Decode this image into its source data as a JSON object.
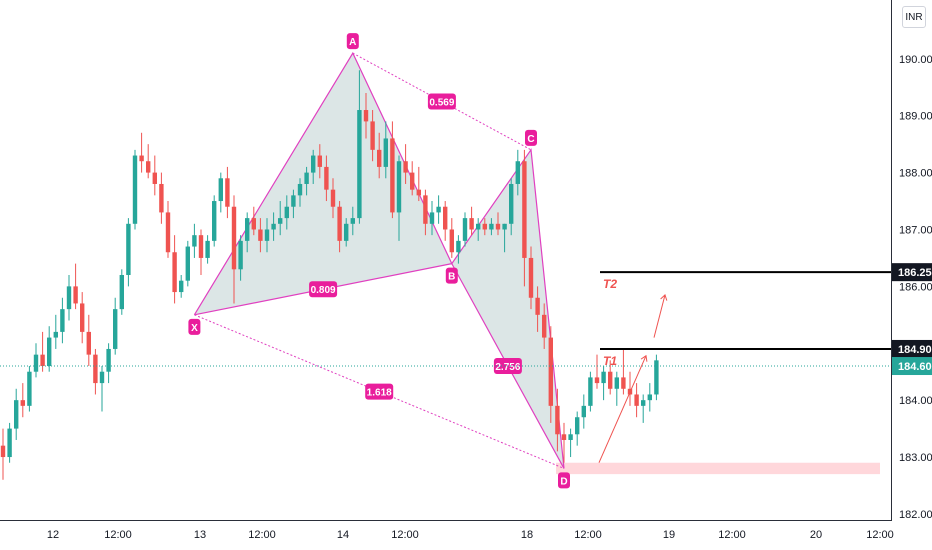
{
  "currency": "INR",
  "chart_data": {
    "type": "candlestick",
    "y_ticks": [
      "190.00",
      "189.00",
      "188.00",
      "187.00",
      "186.00",
      "185.00",
      "184.00",
      "183.00",
      "182.00"
    ],
    "x_ticks": [
      "12",
      "12:00",
      "13",
      "12:00",
      "14",
      "12:00",
      "18",
      "12:00",
      "19",
      "12:00",
      "20",
      "12:00"
    ],
    "ylim": [
      181.7,
      190.7
    ],
    "candles_ohlc": [
      [
        183.2,
        183.5,
        182.6,
        183.0
      ],
      [
        183.0,
        183.6,
        182.9,
        183.5
      ],
      [
        183.5,
        184.2,
        183.3,
        184.0
      ],
      [
        184.0,
        184.3,
        183.7,
        183.9
      ],
      [
        183.9,
        184.6,
        183.8,
        184.5
      ],
      [
        184.5,
        185.0,
        184.4,
        184.8
      ],
      [
        184.8,
        185.2,
        184.5,
        184.6
      ],
      [
        184.6,
        185.3,
        184.5,
        185.1
      ],
      [
        185.1,
        185.5,
        184.9,
        185.2
      ],
      [
        185.2,
        185.8,
        185.0,
        185.6
      ],
      [
        185.6,
        186.2,
        185.4,
        186.0
      ],
      [
        186.0,
        186.4,
        185.6,
        185.7
      ],
      [
        185.7,
        185.9,
        185.0,
        185.2
      ],
      [
        185.2,
        185.5,
        184.6,
        184.8
      ],
      [
        184.8,
        184.9,
        184.1,
        184.3
      ],
      [
        184.3,
        184.6,
        183.8,
        184.5
      ],
      [
        184.5,
        185.0,
        184.3,
        184.9
      ],
      [
        184.9,
        185.8,
        184.8,
        185.6
      ],
      [
        185.6,
        186.3,
        185.5,
        186.2
      ],
      [
        186.2,
        187.2,
        186.0,
        187.1
      ],
      [
        187.1,
        188.4,
        187.0,
        188.3
      ],
      [
        188.3,
        188.7,
        188.0,
        188.2
      ],
      [
        188.2,
        188.5,
        187.9,
        188.0
      ],
      [
        188.0,
        188.3,
        187.6,
        187.8
      ],
      [
        187.8,
        188.0,
        187.1,
        187.3
      ],
      [
        187.3,
        187.5,
        186.5,
        186.6
      ],
      [
        186.6,
        186.9,
        185.7,
        185.9
      ],
      [
        185.9,
        186.2,
        185.8,
        186.1
      ],
      [
        186.1,
        186.8,
        186.0,
        186.7
      ],
      [
        186.7,
        187.1,
        186.5,
        186.9
      ],
      [
        186.9,
        187.0,
        186.2,
        186.5
      ],
      [
        186.5,
        186.9,
        186.4,
        186.8
      ],
      [
        186.8,
        187.6,
        186.7,
        187.5
      ],
      [
        187.5,
        188.0,
        187.3,
        187.9
      ],
      [
        187.9,
        188.1,
        187.2,
        187.4
      ],
      [
        187.4,
        187.6,
        185.7,
        186.3
      ],
      [
        186.3,
        186.9,
        186.1,
        186.8
      ],
      [
        186.8,
        187.3,
        186.6,
        187.2
      ],
      [
        187.2,
        187.4,
        186.9,
        187.0
      ],
      [
        187.0,
        187.2,
        186.6,
        186.8
      ],
      [
        186.8,
        187.2,
        186.6,
        187.0
      ],
      [
        187.0,
        187.3,
        186.8,
        187.1
      ],
      [
        187.1,
        187.5,
        186.9,
        187.2
      ],
      [
        187.2,
        187.6,
        187.0,
        187.4
      ],
      [
        187.4,
        187.7,
        187.2,
        187.6
      ],
      [
        187.6,
        187.9,
        187.4,
        187.8
      ],
      [
        187.8,
        188.1,
        187.6,
        188.0
      ],
      [
        188.0,
        188.4,
        187.8,
        188.3
      ],
      [
        188.3,
        188.5,
        187.9,
        188.1
      ],
      [
        188.1,
        188.3,
        187.5,
        187.7
      ],
      [
        187.7,
        187.9,
        187.2,
        187.4
      ],
      [
        187.4,
        187.5,
        186.6,
        186.8
      ],
      [
        186.8,
        187.2,
        186.7,
        187.1
      ],
      [
        187.1,
        187.4,
        186.9,
        187.2
      ],
      [
        187.2,
        189.8,
        187.1,
        189.1
      ],
      [
        189.1,
        189.4,
        188.6,
        188.9
      ],
      [
        188.9,
        189.1,
        188.2,
        188.4
      ],
      [
        188.4,
        188.7,
        187.9,
        188.1
      ],
      [
        188.1,
        188.9,
        187.9,
        188.6
      ],
      [
        188.6,
        188.9,
        187.2,
        187.3
      ],
      [
        187.3,
        188.3,
        186.8,
        188.2
      ],
      [
        188.2,
        188.5,
        187.8,
        188.0
      ],
      [
        188.0,
        188.2,
        187.6,
        187.7
      ],
      [
        187.7,
        188.1,
        187.5,
        187.6
      ],
      [
        187.6,
        187.7,
        186.9,
        187.1
      ],
      [
        187.1,
        187.5,
        186.9,
        187.3
      ],
      [
        187.3,
        187.6,
        187.1,
        187.4
      ],
      [
        187.4,
        187.5,
        186.8,
        187.0
      ],
      [
        187.0,
        187.2,
        186.5,
        186.6
      ],
      [
        186.6,
        186.9,
        186.4,
        186.8
      ],
      [
        186.8,
        187.3,
        186.7,
        187.2
      ],
      [
        187.2,
        187.4,
        186.9,
        187.0
      ],
      [
        187.0,
        187.2,
        186.8,
        187.1
      ],
      [
        187.1,
        187.2,
        186.9,
        187.0
      ],
      [
        187.0,
        187.2,
        186.9,
        187.1
      ],
      [
        187.1,
        187.3,
        186.9,
        187.0
      ],
      [
        187.0,
        187.1,
        186.6,
        187.1
      ],
      [
        187.1,
        187.9,
        186.9,
        187.8
      ],
      [
        187.8,
        188.4,
        187.6,
        188.2
      ],
      [
        188.2,
        188.4,
        186.0,
        186.5
      ],
      [
        186.5,
        186.7,
        185.6,
        185.8
      ],
      [
        185.8,
        186.0,
        185.2,
        185.5
      ],
      [
        185.5,
        185.7,
        184.9,
        185.1
      ],
      [
        185.1,
        185.3,
        183.6,
        183.9
      ],
      [
        183.9,
        184.2,
        183.1,
        183.4
      ],
      [
        183.4,
        183.6,
        182.9,
        183.3
      ],
      [
        183.3,
        183.5,
        183.0,
        183.4
      ],
      [
        183.4,
        183.8,
        183.2,
        183.7
      ],
      [
        183.7,
        184.1,
        183.5,
        183.9
      ],
      [
        183.9,
        184.5,
        183.8,
        184.4
      ],
      [
        184.4,
        184.8,
        184.2,
        184.3
      ],
      [
        184.3,
        184.6,
        184.0,
        184.5
      ],
      [
        184.5,
        184.7,
        184.1,
        184.2
      ],
      [
        184.2,
        184.5,
        183.9,
        184.4
      ],
      [
        184.4,
        184.9,
        184.1,
        184.2
      ],
      [
        184.2,
        184.5,
        183.9,
        184.1
      ],
      [
        184.1,
        184.3,
        183.7,
        183.9
      ],
      [
        183.9,
        184.1,
        183.6,
        184.0
      ],
      [
        184.0,
        184.3,
        183.8,
        184.1
      ],
      [
        184.1,
        184.8,
        184.0,
        184.7
      ]
    ],
    "harmonic_points": {
      "X": 185.5,
      "A": 190.1,
      "B": 186.4,
      "C": 188.4,
      "D": 182.8
    },
    "ratios": [
      "0.569",
      "0.809",
      "2.756",
      "1.618"
    ],
    "targets": [
      {
        "label": "T1",
        "price": 184.9
      },
      {
        "label": "T2",
        "price": 186.25
      }
    ],
    "current_price": 184.6,
    "price_tags": [
      {
        "text": "186.25",
        "price": 186.25,
        "bg": "#131722"
      },
      {
        "text": "184.90",
        "price": 184.9,
        "bg": "#131722"
      },
      {
        "text": "184.60",
        "price": 184.6,
        "bg": "#26a69a"
      }
    ],
    "support_zone": [
      182.7,
      182.9
    ],
    "colors": {
      "up": "#26a69a",
      "down": "#ef5350",
      "pattern_line": "#e040c0",
      "pattern_fill": "#b2c8c8",
      "point_label_bg": "#e91e9c",
      "ratio_line": "#e040c0",
      "target_line": "#000000",
      "target_text": "#ef5350",
      "zone": "#ffcdd2",
      "current_line": "#26a69a",
      "axis": "#131722"
    }
  }
}
